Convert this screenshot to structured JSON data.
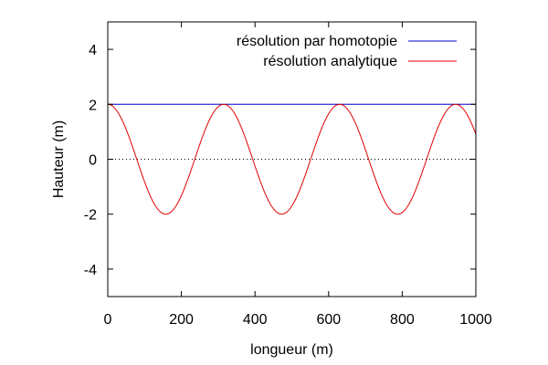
{
  "chart_data": {
    "type": "line",
    "xlabel": "longueur (m)",
    "ylabel": "Hauteur (m)",
    "xlim": [
      0,
      1000
    ],
    "ylim": [
      -5,
      5
    ],
    "xticks": [
      0,
      200,
      400,
      600,
      800,
      1000
    ],
    "yticks": [
      -4,
      -2,
      0,
      2,
      4
    ],
    "zero_line": "dotted",
    "legend_position": "top-right",
    "series": [
      {
        "name": "résolution par homotopie",
        "color": "#0000cc",
        "x": [
          0,
          1000
        ],
        "y": [
          2,
          2
        ]
      },
      {
        "name": "résolution analytique",
        "color": "#e00000",
        "function": "cosine",
        "amplitude": 2,
        "wavelength": 315,
        "phase": 0
      }
    ]
  }
}
